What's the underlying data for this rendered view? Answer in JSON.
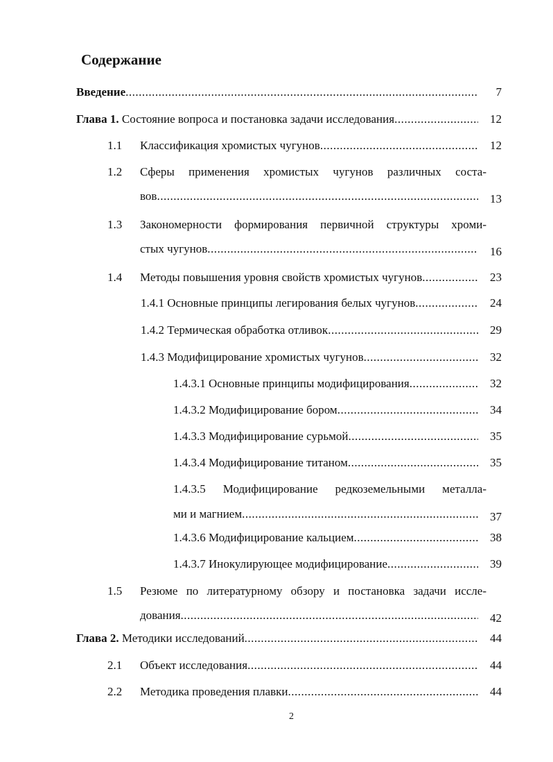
{
  "title": "Содержание",
  "entries": [
    {
      "level": 0,
      "prefix": "Введение",
      "text": "",
      "page": "7"
    },
    {
      "level": 0,
      "prefix": "Глава 1.",
      "text": " Состояние вопроса и постановка задачи исследования",
      "page": "12"
    },
    {
      "level": 1,
      "num": "1.1",
      "text": "Классификация хромистых чугунов",
      "page": "12"
    },
    {
      "level": 1,
      "num": "1.2",
      "text": "Сферы применения хромистых чугунов различных соста-",
      "cont": "вов",
      "page": "13"
    },
    {
      "level": 1,
      "num": "1.3",
      "text": "Закономерности формирования первичной структуры хроми-",
      "cont": "стых чугунов",
      "page": "16"
    },
    {
      "level": 1,
      "num": "1.4",
      "text": "Методы повышения уровня свойств хромистых чугунов",
      "page": "23"
    },
    {
      "level": 2,
      "text": "1.4.1 Основные принципы легирования белых чугунов",
      "page": "24"
    },
    {
      "level": 2,
      "text": "1.4.2 Термическая обработка отливок ",
      "page": "29"
    },
    {
      "level": 2,
      "text": "1.4.3 Модифицирование хромистых чугунов",
      "page": "32"
    },
    {
      "level": 3,
      "text": "1.4.3.1 Основные принципы модифицирования ",
      "page": "32"
    },
    {
      "level": 3,
      "text": "1.4.3.2  Модифицирование бором",
      "page": "34"
    },
    {
      "level": 3,
      "text": "1.4.3.3  Модифицирование сурьмой",
      "page": "35"
    },
    {
      "level": 3,
      "text": "1.4.3.4  Модифицирование титаном",
      "page": "35"
    },
    {
      "level": 3,
      "text": "1.4.3.5  Модифицирование редкоземельными металла-",
      "cont": "ми и магнием",
      "page": "37"
    },
    {
      "level": 3,
      "text": "1.4.3.6 Модифицирование кальцием",
      "page": "38"
    },
    {
      "level": 3,
      "text": "1.4.3.7  Инокулирующее модифицирование",
      "page": "39"
    },
    {
      "level": 1,
      "num": "1.5",
      "text": "Резюме по литературному обзору и постановка задачи иссле-",
      "cont": "дования",
      "page": "42"
    },
    {
      "level": 0,
      "prefix": "Глава 2.",
      "text": " Методики исследований",
      "page": "44"
    },
    {
      "level": 1,
      "num": "2.1",
      "text": "Объект исследования",
      "page": "44"
    },
    {
      "level": 1,
      "num": "2.2",
      "text": "Методика проведения плавки",
      "page": "44"
    }
  ],
  "footer_page_number": "2"
}
